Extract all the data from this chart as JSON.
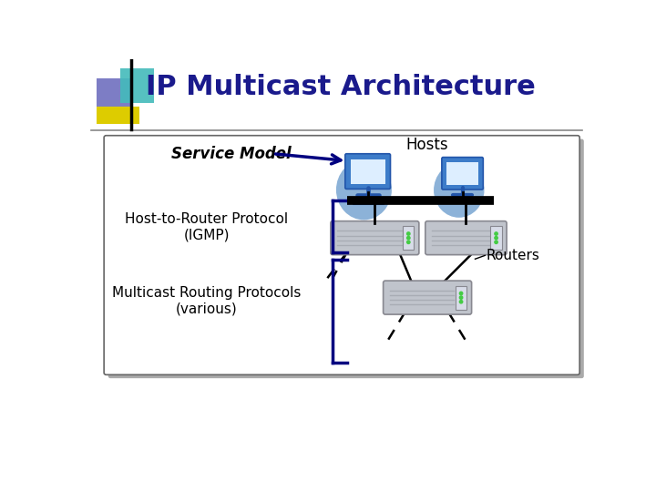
{
  "title": "IP Multicast Architecture",
  "title_color": "#1a1a8c",
  "title_fontsize": 22,
  "bg_color": "#ffffff",
  "box_bg": "#ffffff",
  "service_model_text": "Service Model",
  "hosts_text": "Hosts",
  "igmp_text": "Host-to-Router Protocol\n(IGMP)",
  "routing_text": "Multicast Routing Protocols\n(various)",
  "routers_text": "Routers",
  "arrow_color": "#000080",
  "bracket_color": "#000080",
  "host_blue": "#3d7cc9",
  "host_aura": "#6699cc",
  "host_screen": "#ddeeff",
  "router_fill": "#c0c4cc",
  "router_stripe": "#a8acb4",
  "router_edge": "#888890",
  "router_light_green": "#44cc44",
  "deco_purple": "#6666bb",
  "deco_teal": "#44bbbb",
  "deco_yellow": "#ddcc00",
  "separator_color": "#888888",
  "box_border": "#666666",
  "shadow_color": "#aaaaaa"
}
